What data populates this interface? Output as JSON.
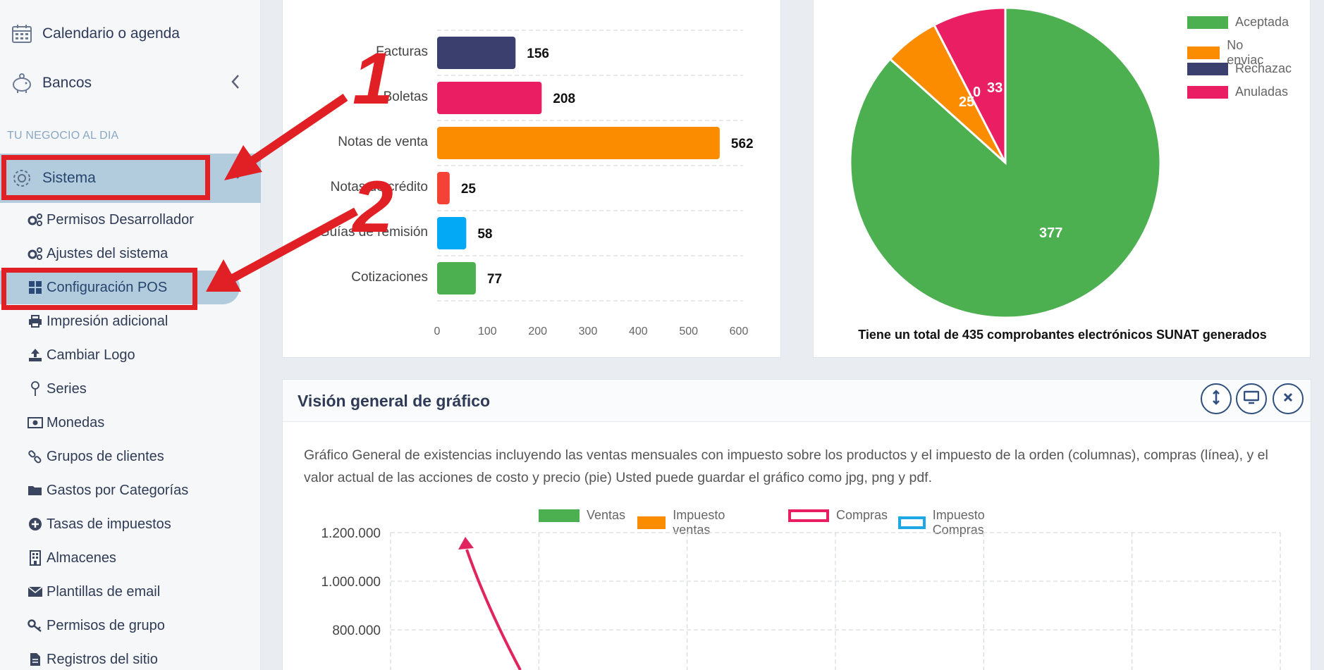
{
  "sidebar": {
    "top_items": [
      {
        "label": "Calendario o agenda",
        "icon": "calendar-icon"
      },
      {
        "label": "Bancos",
        "icon": "piggy-bank-icon"
      }
    ],
    "section_label": "TU NEGOCIO AL DIA",
    "sistema_label": "Sistema",
    "sub_items": [
      {
        "label": "Permisos Desarrollador",
        "icon": "gears-icon"
      },
      {
        "label": "Ajustes del sistema",
        "icon": "gears-icon"
      },
      {
        "label": "Configuración POS",
        "icon": "grid-icon"
      },
      {
        "label": "Impresión adicional",
        "icon": "printer-icon"
      },
      {
        "label": "Cambiar Logo",
        "icon": "upload-icon"
      },
      {
        "label": "Series",
        "icon": "pin-icon"
      },
      {
        "label": "Monedas",
        "icon": "money-icon"
      },
      {
        "label": "Grupos de clientes",
        "icon": "link-icon"
      },
      {
        "label": "Gastos por Categorías",
        "icon": "folder-icon"
      },
      {
        "label": "Tasas de impuestos",
        "icon": "plus-circle-icon"
      },
      {
        "label": "Almacenes",
        "icon": "building-icon"
      },
      {
        "label": "Plantillas de email",
        "icon": "envelope-icon"
      },
      {
        "label": "Permisos de grupo",
        "icon": "key-icon"
      },
      {
        "label": "Registros del sitio",
        "icon": "file-icon"
      }
    ]
  },
  "annotations": {
    "step1": "1",
    "step2": "2",
    "colors": {
      "arrow": "#e02025",
      "pink_arrow": "#e0245e"
    }
  },
  "chart_data": [
    {
      "type": "bar",
      "orientation": "horizontal",
      "categories": [
        "Facturas",
        "Boletas",
        "Notas de venta",
        "Notas de crédito",
        "Guías de remisión",
        "Cotizaciones"
      ],
      "values": [
        156,
        208,
        562,
        25,
        58,
        77
      ],
      "colors": [
        "#3a3f6e",
        "#e91e63",
        "#fb8c00",
        "#f44336",
        "#03a9f4",
        "#4caf50"
      ],
      "xlim": [
        0,
        600
      ],
      "xticks": [
        "0",
        "100",
        "200",
        "300",
        "400",
        "500",
        "600"
      ],
      "grid": true
    },
    {
      "type": "pie",
      "slices": [
        {
          "label": "Aceptadas",
          "value": 377,
          "color": "#4caf50"
        },
        {
          "label": "No enviadas",
          "value": 25,
          "color": "#fb8c00"
        },
        {
          "label": "Rechazadas",
          "value": 0,
          "color": "#3a3f6e"
        },
        {
          "label": "Anuladas",
          "value": 33,
          "color": "#e91e63"
        }
      ],
      "legend_labels": [
        "Aceptada",
        "No enviac",
        "Rechazac",
        "Anuladas"
      ],
      "data_labels": [
        "377",
        "25",
        "0",
        "33"
      ],
      "caption": "Tiene un total de 435 comprobantes electrónicos SUNAT generados",
      "legend": "top-right"
    },
    {
      "type": "bar",
      "title": "Visión general de gráfico",
      "series": [
        {
          "name": "Ventas",
          "color": "#4caf50",
          "style": "filled"
        },
        {
          "name": "Impuesto ventas",
          "color": "#fb8c00",
          "style": "filled"
        },
        {
          "name": "Compras",
          "color": "#e91e63",
          "style": "outline"
        },
        {
          "name": "Impuesto Compras",
          "color": "#1ea7e4",
          "style": "outline"
        }
      ],
      "yticks": [
        "1.200.000",
        "1.000.000",
        "800.000"
      ],
      "grid": true,
      "legend": "top"
    }
  ],
  "overview": {
    "title": "Visión general de gráfico",
    "description": "Gráfico General de existencias incluyendo las ventas mensuales con impuesto sobre los productos y el impuesto de la orden (columnas), compras (línea), y el valor actual de las acciones de costo y precio (pie) Usted puede guardar el gráfico como jpg, png y pdf.",
    "buttons": [
      "resize-icon",
      "fullscreen-icon",
      "close-icon"
    ]
  }
}
